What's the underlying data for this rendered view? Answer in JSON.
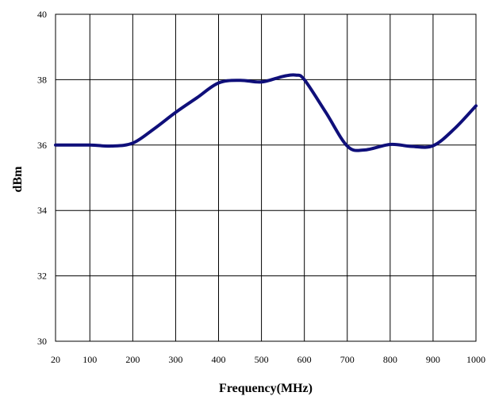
{
  "chart_data": {
    "type": "line",
    "title": "",
    "xlabel": "Frequency(MHz)",
    "ylabel": "dBm",
    "xlim": [
      20,
      1000
    ],
    "ylim": [
      30,
      40
    ],
    "x_ticks": [
      20,
      100,
      200,
      300,
      400,
      500,
      600,
      700,
      800,
      900,
      1000
    ],
    "y_ticks": [
      30,
      32,
      34,
      36,
      38,
      40
    ],
    "grid": true,
    "legend": "none",
    "series": [
      {
        "color": "#0f0f7a",
        "x": [
          20,
          100,
          150,
          200,
          250,
          300,
          350,
          400,
          450,
          500,
          550,
          580,
          600,
          650,
          700,
          740,
          800,
          850,
          900,
          950,
          1000
        ],
        "y": [
          36.0,
          36.0,
          35.97,
          36.06,
          36.5,
          37.0,
          37.45,
          37.9,
          37.98,
          37.93,
          38.1,
          38.14,
          38.0,
          37.0,
          35.97,
          35.85,
          36.02,
          35.96,
          35.98,
          36.5,
          37.2
        ]
      }
    ]
  }
}
